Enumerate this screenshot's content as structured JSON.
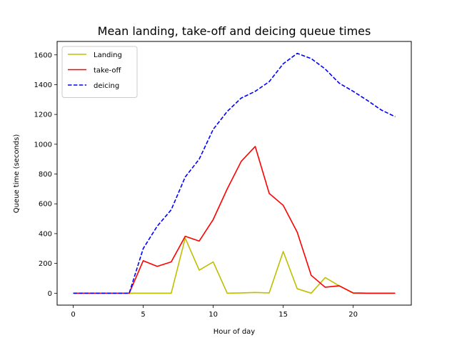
{
  "chart_data": {
    "type": "line",
    "title": "Mean landing, take-off and deicing queue times",
    "xlabel": "Hour of day",
    "ylabel": "Queue time (seconds)",
    "xlim": [
      -1.15,
      24.15
    ],
    "ylim": [
      -80,
      1690
    ],
    "xticks": [
      0,
      5,
      10,
      15,
      20
    ],
    "yticks": [
      0,
      200,
      400,
      600,
      800,
      1000,
      1200,
      1400,
      1600
    ],
    "grid": false,
    "legend_position": "upper left",
    "x": [
      0,
      1,
      2,
      3,
      4,
      5,
      6,
      7,
      8,
      9,
      10,
      11,
      12,
      13,
      14,
      15,
      16,
      17,
      18,
      19,
      20,
      21,
      22,
      23
    ],
    "series": [
      {
        "name": "Landing",
        "color": "#bfbf00",
        "style": "solid",
        "values": [
          0,
          0,
          0,
          0,
          0,
          0,
          0,
          0,
          370,
          155,
          210,
          0,
          2,
          5,
          2,
          280,
          30,
          0,
          105,
          50,
          0,
          0,
          0,
          0
        ]
      },
      {
        "name": "take-off",
        "color": "#ff0000",
        "style": "solid",
        "values": [
          0,
          0,
          0,
          0,
          0,
          218,
          180,
          210,
          382,
          350,
          495,
          700,
          885,
          985,
          670,
          590,
          410,
          120,
          40,
          50,
          2,
          0,
          0,
          0
        ]
      },
      {
        "name": "deicing",
        "color": "#0000ff",
        "style": "dashed",
        "values": [
          0,
          0,
          0,
          0,
          0,
          300,
          450,
          560,
          780,
          900,
          1100,
          1220,
          1310,
          1355,
          1420,
          1540,
          1610,
          1575,
          1505,
          1410,
          1355,
          1295,
          1230,
          1185
        ]
      }
    ]
  }
}
